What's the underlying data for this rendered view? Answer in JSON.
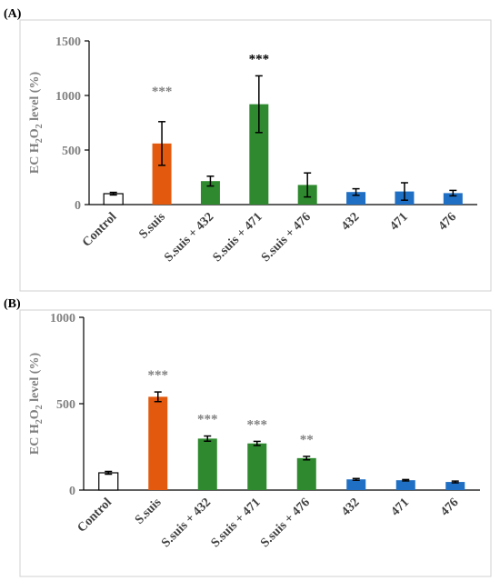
{
  "colors": {
    "control": "#ffffff",
    "s_suis": "#e35a0e",
    "probiotic_with_s_suis": "#2f8a2f",
    "probiotic_alone": "#1f6fc4",
    "axis": "#000000",
    "tick_text": "#808080",
    "label_text": "#404040",
    "sig_gray": "#808080",
    "sig_black": "#000000"
  },
  "chart_data": [
    {
      "panel": "(A)",
      "type": "bar",
      "ylabel": "EC H2O2 level (%)",
      "ylabel_parts": {
        "pre": "EC H",
        "sub1": "2",
        "mid": "O",
        "sub2": "2",
        "post": " level (%)"
      },
      "ylim": [
        0,
        1500
      ],
      "yticks": [
        0,
        500,
        1000,
        1500
      ],
      "grid": false,
      "categories": [
        "Control",
        "S.suis",
        "S.suis + 432",
        "S.suis + 471",
        "S.suis + 476",
        "432",
        "471",
        "476"
      ],
      "values": [
        100,
        560,
        215,
        920,
        180,
        115,
        120,
        105
      ],
      "errors": [
        12,
        200,
        45,
        260,
        110,
        30,
        80,
        25
      ],
      "bar_colors": [
        "control",
        "s_suis",
        "probiotic_with_s_suis",
        "probiotic_with_s_suis",
        "probiotic_with_s_suis",
        "probiotic_alone",
        "probiotic_alone",
        "probiotic_alone"
      ],
      "significance": [
        "",
        "***",
        "",
        "***",
        "",
        "",
        "",
        ""
      ],
      "sig_colors": [
        "",
        "sig_gray",
        "",
        "sig_black",
        "",
        "",
        "",
        ""
      ]
    },
    {
      "panel": "(B)",
      "type": "bar",
      "ylabel": "EC H2O2 level (%)",
      "ylabel_parts": {
        "pre": "EC H",
        "sub1": "2",
        "mid": "O",
        "sub2": "2",
        "post": " level (%)"
      },
      "ylim": [
        0,
        1000
      ],
      "yticks": [
        0,
        500,
        1000
      ],
      "grid": false,
      "categories": [
        "Control",
        "S.suis",
        "S.suis + 432",
        "S.suis + 471",
        "S.suis + 476",
        "432",
        "471",
        "476"
      ],
      "values": [
        100,
        540,
        298,
        270,
        185,
        62,
        57,
        47
      ],
      "errors": [
        8,
        28,
        15,
        12,
        10,
        5,
        4,
        5
      ],
      "bar_colors": [
        "control",
        "s_suis",
        "probiotic_with_s_suis",
        "probiotic_with_s_suis",
        "probiotic_with_s_suis",
        "probiotic_alone",
        "probiotic_alone",
        "probiotic_alone"
      ],
      "significance": [
        "",
        "***",
        "***",
        "***",
        "**",
        "",
        "",
        ""
      ],
      "sig_colors": [
        "",
        "sig_gray",
        "sig_gray",
        "sig_gray",
        "sig_gray",
        "",
        "",
        ""
      ]
    }
  ]
}
